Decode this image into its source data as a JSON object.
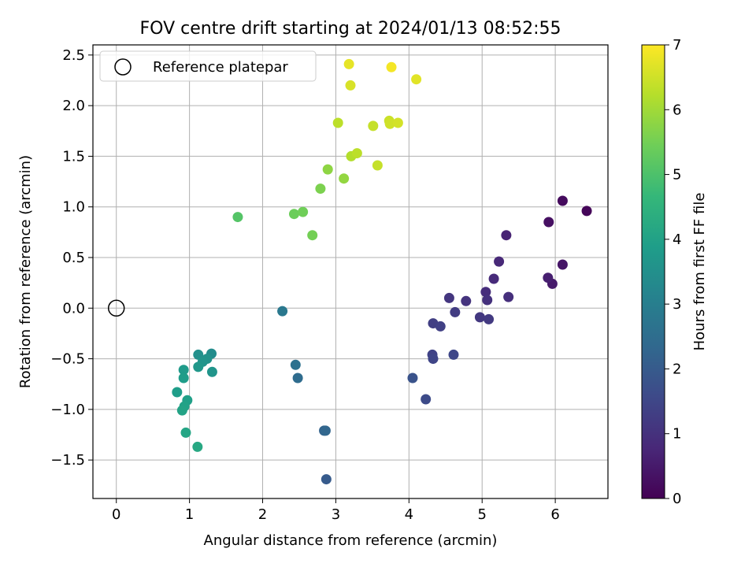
{
  "chart_data": {
    "type": "scatter",
    "title": "FOV centre drift starting at 2024/01/13 08:52:55",
    "xlabel": "Angular distance from reference (arcmin)",
    "ylabel": "Rotation from reference (arcmin)",
    "xlim": [
      -0.32,
      6.72
    ],
    "ylim": [
      -1.88,
      2.6
    ],
    "x_ticks": [
      0,
      1,
      2,
      3,
      4,
      5,
      6
    ],
    "y_ticks": [
      -1.5,
      -1.0,
      -0.5,
      0.0,
      0.5,
      1.0,
      1.5,
      2.0,
      2.5
    ],
    "x_tick_labels": [
      "0",
      "1",
      "2",
      "3",
      "4",
      "5",
      "6"
    ],
    "y_tick_labels": [
      "−1.5",
      "−1.0",
      "−0.5",
      "0.0",
      "0.5",
      "1.0",
      "1.5",
      "2.0",
      "2.5"
    ],
    "grid": true,
    "legend": {
      "placement": "top-left",
      "label": "Reference platepar"
    },
    "reference_point": {
      "x": 0,
      "y": 0
    },
    "colorbar": {
      "label": "Hours from first FF file",
      "min": 0,
      "max": 7,
      "ticks": [
        0,
        1,
        2,
        3,
        4,
        5,
        6,
        7
      ],
      "tick_labels": [
        "0",
        "1",
        "2",
        "3",
        "4",
        "5",
        "6",
        "7"
      ],
      "colormap": "viridis"
    },
    "colormap_stops": [
      "#440154",
      "#482878",
      "#3e4989",
      "#31688e",
      "#26828e",
      "#1f9e89",
      "#35b779",
      "#6ece58",
      "#b5de2b",
      "#fde725"
    ],
    "points": [
      {
        "x": 6.43,
        "y": 0.96,
        "c": 0.1
      },
      {
        "x": 6.1,
        "y": 1.06,
        "c": 0.2
      },
      {
        "x": 5.91,
        "y": 0.85,
        "c": 0.3
      },
      {
        "x": 6.1,
        "y": 0.43,
        "c": 0.4
      },
      {
        "x": 5.96,
        "y": 0.24,
        "c": 0.5
      },
      {
        "x": 5.9,
        "y": 0.3,
        "c": 0.6
      },
      {
        "x": 5.33,
        "y": 0.72,
        "c": 0.7
      },
      {
        "x": 5.23,
        "y": 0.46,
        "c": 0.8
      },
      {
        "x": 5.16,
        "y": 0.29,
        "c": 0.85
      },
      {
        "x": 5.05,
        "y": 0.16,
        "c": 0.9
      },
      {
        "x": 5.36,
        "y": 0.11,
        "c": 0.95
      },
      {
        "x": 5.07,
        "y": 0.08,
        "c": 1.0
      },
      {
        "x": 4.78,
        "y": 0.07,
        "c": 1.05
      },
      {
        "x": 4.55,
        "y": 0.1,
        "c": 1.1
      },
      {
        "x": 4.97,
        "y": -0.09,
        "c": 1.15
      },
      {
        "x": 5.09,
        "y": -0.11,
        "c": 1.2
      },
      {
        "x": 4.63,
        "y": -0.04,
        "c": 1.25
      },
      {
        "x": 4.33,
        "y": -0.15,
        "c": 1.3
      },
      {
        "x": 4.43,
        "y": -0.18,
        "c": 1.35
      },
      {
        "x": 4.32,
        "y": -0.46,
        "c": 1.4
      },
      {
        "x": 4.33,
        "y": -0.5,
        "c": 1.45
      },
      {
        "x": 4.61,
        "y": -0.46,
        "c": 1.5
      },
      {
        "x": 4.23,
        "y": -0.9,
        "c": 1.6
      },
      {
        "x": 4.05,
        "y": -0.69,
        "c": 1.8
      },
      {
        "x": 2.87,
        "y": -1.69,
        "c": 2.0
      },
      {
        "x": 2.84,
        "y": -1.21,
        "c": 2.2
      },
      {
        "x": 2.86,
        "y": -1.21,
        "c": 2.3
      },
      {
        "x": 2.48,
        "y": -0.69,
        "c": 2.45
      },
      {
        "x": 2.45,
        "y": -0.56,
        "c": 2.6
      },
      {
        "x": 2.27,
        "y": -0.03,
        "c": 2.8
      },
      {
        "x": 1.3,
        "y": -0.45,
        "c": 3.4
      },
      {
        "x": 1.12,
        "y": -0.46,
        "c": 3.5
      },
      {
        "x": 1.24,
        "y": -0.5,
        "c": 3.55
      },
      {
        "x": 1.18,
        "y": -0.53,
        "c": 3.6
      },
      {
        "x": 1.31,
        "y": -0.63,
        "c": 3.65
      },
      {
        "x": 1.12,
        "y": -0.58,
        "c": 3.7
      },
      {
        "x": 0.92,
        "y": -0.61,
        "c": 3.8
      },
      {
        "x": 0.92,
        "y": -0.69,
        "c": 3.85
      },
      {
        "x": 0.83,
        "y": -0.83,
        "c": 3.9
      },
      {
        "x": 0.97,
        "y": -0.91,
        "c": 3.95
      },
      {
        "x": 0.93,
        "y": -0.97,
        "c": 4.0
      },
      {
        "x": 0.9,
        "y": -1.01,
        "c": 4.05
      },
      {
        "x": 0.95,
        "y": -1.23,
        "c": 4.1
      },
      {
        "x": 1.11,
        "y": -1.37,
        "c": 4.2
      },
      {
        "x": 1.66,
        "y": 0.9,
        "c": 5.1
      },
      {
        "x": 2.43,
        "y": 0.93,
        "c": 5.4
      },
      {
        "x": 2.55,
        "y": 0.95,
        "c": 5.45
      },
      {
        "x": 2.68,
        "y": 0.72,
        "c": 5.5
      },
      {
        "x": 2.79,
        "y": 1.18,
        "c": 5.6
      },
      {
        "x": 2.89,
        "y": 1.37,
        "c": 5.8
      },
      {
        "x": 3.11,
        "y": 1.28,
        "c": 5.85
      },
      {
        "x": 3.21,
        "y": 1.5,
        "c": 6.2
      },
      {
        "x": 3.29,
        "y": 1.53,
        "c": 6.3
      },
      {
        "x": 3.57,
        "y": 1.41,
        "c": 6.4
      },
      {
        "x": 3.03,
        "y": 1.83,
        "c": 6.3
      },
      {
        "x": 3.51,
        "y": 1.8,
        "c": 6.4
      },
      {
        "x": 3.73,
        "y": 1.85,
        "c": 6.45
      },
      {
        "x": 3.74,
        "y": 1.82,
        "c": 6.5
      },
      {
        "x": 3.85,
        "y": 1.83,
        "c": 6.55
      },
      {
        "x": 3.2,
        "y": 2.2,
        "c": 6.6
      },
      {
        "x": 4.1,
        "y": 2.26,
        "c": 6.7
      },
      {
        "x": 3.18,
        "y": 2.41,
        "c": 6.75
      },
      {
        "x": 3.76,
        "y": 2.38,
        "c": 6.9
      }
    ]
  }
}
